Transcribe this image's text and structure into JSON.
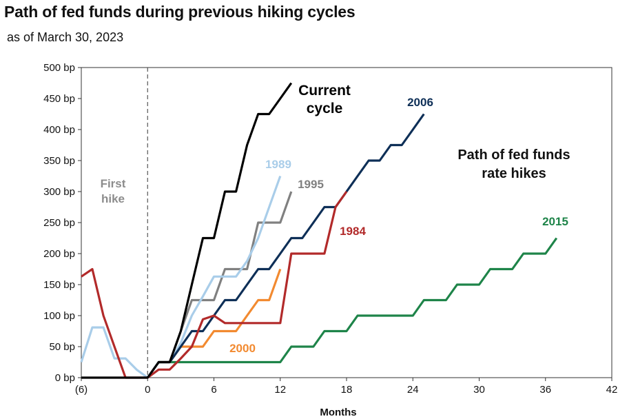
{
  "title": "Path of fed funds during previous hiking cycles",
  "subtitle": "as of March 30, 2023",
  "chart_data": {
    "type": "line",
    "xlabel": "Months",
    "ylabel": "",
    "xlim": [
      -6,
      42
    ],
    "ylim": [
      0,
      500
    ],
    "x_ticks": [
      -6,
      0,
      6,
      12,
      18,
      24,
      30,
      36,
      42
    ],
    "x_tick_labels": [
      "(6)",
      "0",
      "6",
      "12",
      "18",
      "24",
      "30",
      "36",
      "42"
    ],
    "y_ticks": [
      0,
      50,
      100,
      150,
      200,
      250,
      300,
      350,
      400,
      450,
      500
    ],
    "y_tick_labels": [
      "0 bp",
      "50 bp",
      "100 bp",
      "150 bp",
      "200 bp",
      "250 bp",
      "300 bp",
      "350 bp",
      "400 bp",
      "450 bp",
      "500 bp"
    ],
    "first_hike_label": "First hike",
    "annotation": "Path of fed funds rate hikes",
    "series": [
      {
        "name": "Current cycle",
        "color": "#000000",
        "points": [
          [
            -6,
            0
          ],
          [
            0,
            0
          ],
          [
            1,
            25
          ],
          [
            2,
            25
          ],
          [
            3,
            75
          ],
          [
            4,
            150
          ],
          [
            5,
            225
          ],
          [
            6,
            225
          ],
          [
            7,
            300
          ],
          [
            8,
            300
          ],
          [
            9,
            375
          ],
          [
            10,
            425
          ],
          [
            11,
            425
          ],
          [
            12,
            450
          ],
          [
            13,
            475
          ]
        ]
      },
      {
        "name": "2006",
        "color": "#0e2f57",
        "points": [
          [
            0,
            0
          ],
          [
            1,
            25
          ],
          [
            2,
            25
          ],
          [
            3,
            50
          ],
          [
            4,
            75
          ],
          [
            5,
            75
          ],
          [
            6,
            100
          ],
          [
            7,
            125
          ],
          [
            8,
            125
          ],
          [
            9,
            150
          ],
          [
            10,
            175
          ],
          [
            11,
            175
          ],
          [
            12,
            200
          ],
          [
            13,
            225
          ],
          [
            14,
            225
          ],
          [
            15,
            250
          ],
          [
            16,
            275
          ],
          [
            17,
            275
          ],
          [
            18,
            300
          ],
          [
            19,
            325
          ],
          [
            20,
            350
          ],
          [
            21,
            350
          ],
          [
            22,
            375
          ],
          [
            23,
            375
          ],
          [
            24,
            400
          ],
          [
            25,
            425
          ]
        ]
      },
      {
        "name": "1989",
        "color": "#a9cde9",
        "points": [
          [
            -6,
            25
          ],
          [
            -5,
            81
          ],
          [
            -4,
            81
          ],
          [
            -3,
            31
          ],
          [
            -2,
            31
          ],
          [
            -1,
            13
          ],
          [
            0,
            0
          ],
          [
            1,
            25
          ],
          [
            2,
            25
          ],
          [
            3,
            56
          ],
          [
            4,
            100
          ],
          [
            5,
            131
          ],
          [
            6,
            163
          ],
          [
            7,
            163
          ],
          [
            8,
            163
          ],
          [
            9,
            188
          ],
          [
            10,
            225
          ],
          [
            11,
            275
          ],
          [
            12,
            325
          ]
        ]
      },
      {
        "name": "1995",
        "color": "#808080",
        "points": [
          [
            0,
            0
          ],
          [
            1,
            25
          ],
          [
            2,
            25
          ],
          [
            3,
            75
          ],
          [
            4,
            125
          ],
          [
            5,
            125
          ],
          [
            6,
            125
          ],
          [
            7,
            175
          ],
          [
            8,
            175
          ],
          [
            9,
            175
          ],
          [
            10,
            250
          ],
          [
            11,
            250
          ],
          [
            12,
            250
          ],
          [
            13,
            300
          ]
        ]
      },
      {
        "name": "1984",
        "color": "#b22a2a",
        "points": [
          [
            -6,
            163
          ],
          [
            -5,
            175
          ],
          [
            -4,
            100
          ],
          [
            -3,
            50
          ],
          [
            -2,
            0
          ],
          [
            -1,
            0
          ],
          [
            0,
            0
          ],
          [
            1,
            13
          ],
          [
            2,
            13
          ],
          [
            3,
            31
          ],
          [
            4,
            50
          ],
          [
            5,
            94
          ],
          [
            6,
            100
          ],
          [
            7,
            88
          ],
          [
            8,
            88
          ],
          [
            9,
            88
          ],
          [
            10,
            88
          ],
          [
            11,
            88
          ],
          [
            12,
            88
          ],
          [
            13,
            200
          ],
          [
            14,
            200
          ],
          [
            15,
            200
          ],
          [
            16,
            200
          ],
          [
            17,
            275
          ],
          [
            18,
            300
          ]
        ]
      },
      {
        "name": "2000",
        "color": "#f28a30",
        "points": [
          [
            0,
            0
          ],
          [
            1,
            25
          ],
          [
            2,
            25
          ],
          [
            3,
            50
          ],
          [
            4,
            50
          ],
          [
            5,
            50
          ],
          [
            6,
            75
          ],
          [
            7,
            75
          ],
          [
            8,
            75
          ],
          [
            9,
            100
          ],
          [
            10,
            125
          ],
          [
            11,
            125
          ],
          [
            12,
            175
          ]
        ]
      },
      {
        "name": "2015",
        "color": "#1e8449",
        "points": [
          [
            0,
            0
          ],
          [
            1,
            25
          ],
          [
            2,
            25
          ],
          [
            3,
            25
          ],
          [
            4,
            25
          ],
          [
            5,
            25
          ],
          [
            6,
            25
          ],
          [
            7,
            25
          ],
          [
            8,
            25
          ],
          [
            9,
            25
          ],
          [
            10,
            25
          ],
          [
            11,
            25
          ],
          [
            12,
            25
          ],
          [
            13,
            50
          ],
          [
            14,
            50
          ],
          [
            15,
            50
          ],
          [
            16,
            75
          ],
          [
            17,
            75
          ],
          [
            18,
            75
          ],
          [
            19,
            100
          ],
          [
            20,
            100
          ],
          [
            21,
            100
          ],
          [
            22,
            100
          ],
          [
            23,
            100
          ],
          [
            24,
            100
          ],
          [
            25,
            125
          ],
          [
            26,
            125
          ],
          [
            27,
            125
          ],
          [
            28,
            150
          ],
          [
            29,
            150
          ],
          [
            30,
            150
          ],
          [
            31,
            175
          ],
          [
            32,
            175
          ],
          [
            33,
            175
          ],
          [
            34,
            200
          ],
          [
            35,
            200
          ],
          [
            36,
            200
          ],
          [
            37,
            225
          ]
        ]
      }
    ]
  }
}
